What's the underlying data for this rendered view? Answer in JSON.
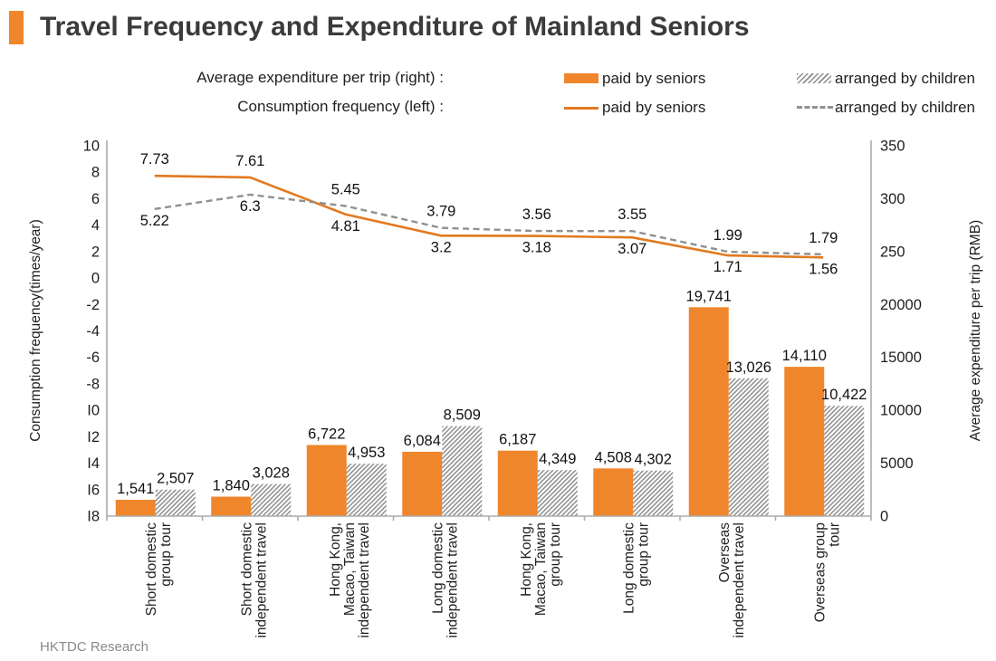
{
  "header": {
    "title": "Travel Frequency and Expenditure of Mainland Seniors"
  },
  "footer": {
    "credit": "HKTDC Research"
  },
  "legend": {
    "expenditure_label": "Average expenditure per trip (right) :",
    "frequency_label": "Consumption frequency (left) :",
    "expenditure_paid_by_seniors": "paid by seniors",
    "expenditure_arranged_by_children": "arranged by children",
    "frequency_paid_by_seniors": "paid by seniors",
    "frequency_arranged_by_children": "arranged by children"
  },
  "colors": {
    "accent_orange": "#F0862B",
    "bar_orange": "#F0862B",
    "line_orange": "#E2791F",
    "hatch_gray": "#8C8C8C",
    "dash_gray": "#8F9090",
    "axis_gray": "#ACACAC",
    "text_dark": "#1f1f1f",
    "title_dark": "#3B3B3B",
    "footer_gray": "#8a8a8a"
  },
  "chart_data": {
    "type": "bar+line combo",
    "legend_position": "top",
    "grid": false,
    "categories": [
      [
        "Short domestic",
        "group tour"
      ],
      [
        "Short domestic",
        "independent travel"
      ],
      [
        "Hong Kong,",
        "Macao, Taiwan",
        "independent travel"
      ],
      [
        "Long domestic",
        "independent travel"
      ],
      [
        "Hong Kong,",
        "Macao, Taiwan",
        "group tour"
      ],
      [
        "Long domestic",
        "group tour"
      ],
      [
        "Overseas",
        "independent travel"
      ],
      [
        "Overseas group",
        "tour"
      ]
    ],
    "bar_series": [
      {
        "name": "paid by seniors",
        "style": "solid-orange",
        "axis": "right",
        "values": [
          1541,
          1840,
          6722,
          6084,
          6187,
          4508,
          19741,
          14110
        ],
        "labels": [
          "1,541",
          "1,840",
          "6,722",
          "6,084",
          "6,187",
          "4,508",
          "19,741",
          "14,110"
        ]
      },
      {
        "name": "arranged by children",
        "style": "hatched-gray",
        "axis": "right",
        "values": [
          2507,
          3028,
          4953,
          8509,
          4349,
          4302,
          13026,
          10422
        ],
        "labels": [
          "2,507",
          "3,028",
          "4,953",
          "8,509",
          "4,349",
          "4,302",
          "13,026",
          "10,422"
        ]
      }
    ],
    "line_series": [
      {
        "name": "paid by seniors",
        "style": "solid-orange",
        "axis": "left",
        "values": [
          7.73,
          7.61,
          4.81,
          3.2,
          3.18,
          3.07,
          1.71,
          1.56
        ],
        "labels": [
          "7.73",
          "7.61",
          "4.81",
          "3.2",
          "3.18",
          "3.07",
          "1.71",
          "1.56"
        ],
        "label_side": [
          "above",
          "above",
          "below",
          "below",
          "below",
          "below",
          "below",
          "below"
        ]
      },
      {
        "name": "arranged by children",
        "style": "dashed-gray",
        "axis": "left",
        "values": [
          5.22,
          6.3,
          5.45,
          3.79,
          3.56,
          3.55,
          1.99,
          1.79
        ],
        "labels": [
          "5.22",
          "6.3",
          "5.45",
          "3.79",
          "3.56",
          "3.55",
          "1.99",
          "1.79"
        ],
        "label_side": [
          "below",
          "below",
          "above",
          "above",
          "above",
          "above",
          "above",
          "above"
        ]
      }
    ],
    "left_axis": {
      "title": "Consumption frequency(times/year)",
      "tick_labels": [
        "10",
        "8",
        "6",
        "4",
        "2",
        "0",
        "-2",
        "-4",
        "-6",
        "-8",
        "I0",
        "I2",
        "I4",
        "I6",
        "I8"
      ],
      "top_value": 10,
      "bottom_value": -18
    },
    "right_axis": {
      "title": "Average expenditure per trip (RMB)",
      "tick_labels": [
        "350",
        "300",
        "250",
        "20000",
        "15000",
        "10000",
        "5000",
        "0"
      ],
      "top_value": 35000,
      "bottom_value": 0
    }
  }
}
